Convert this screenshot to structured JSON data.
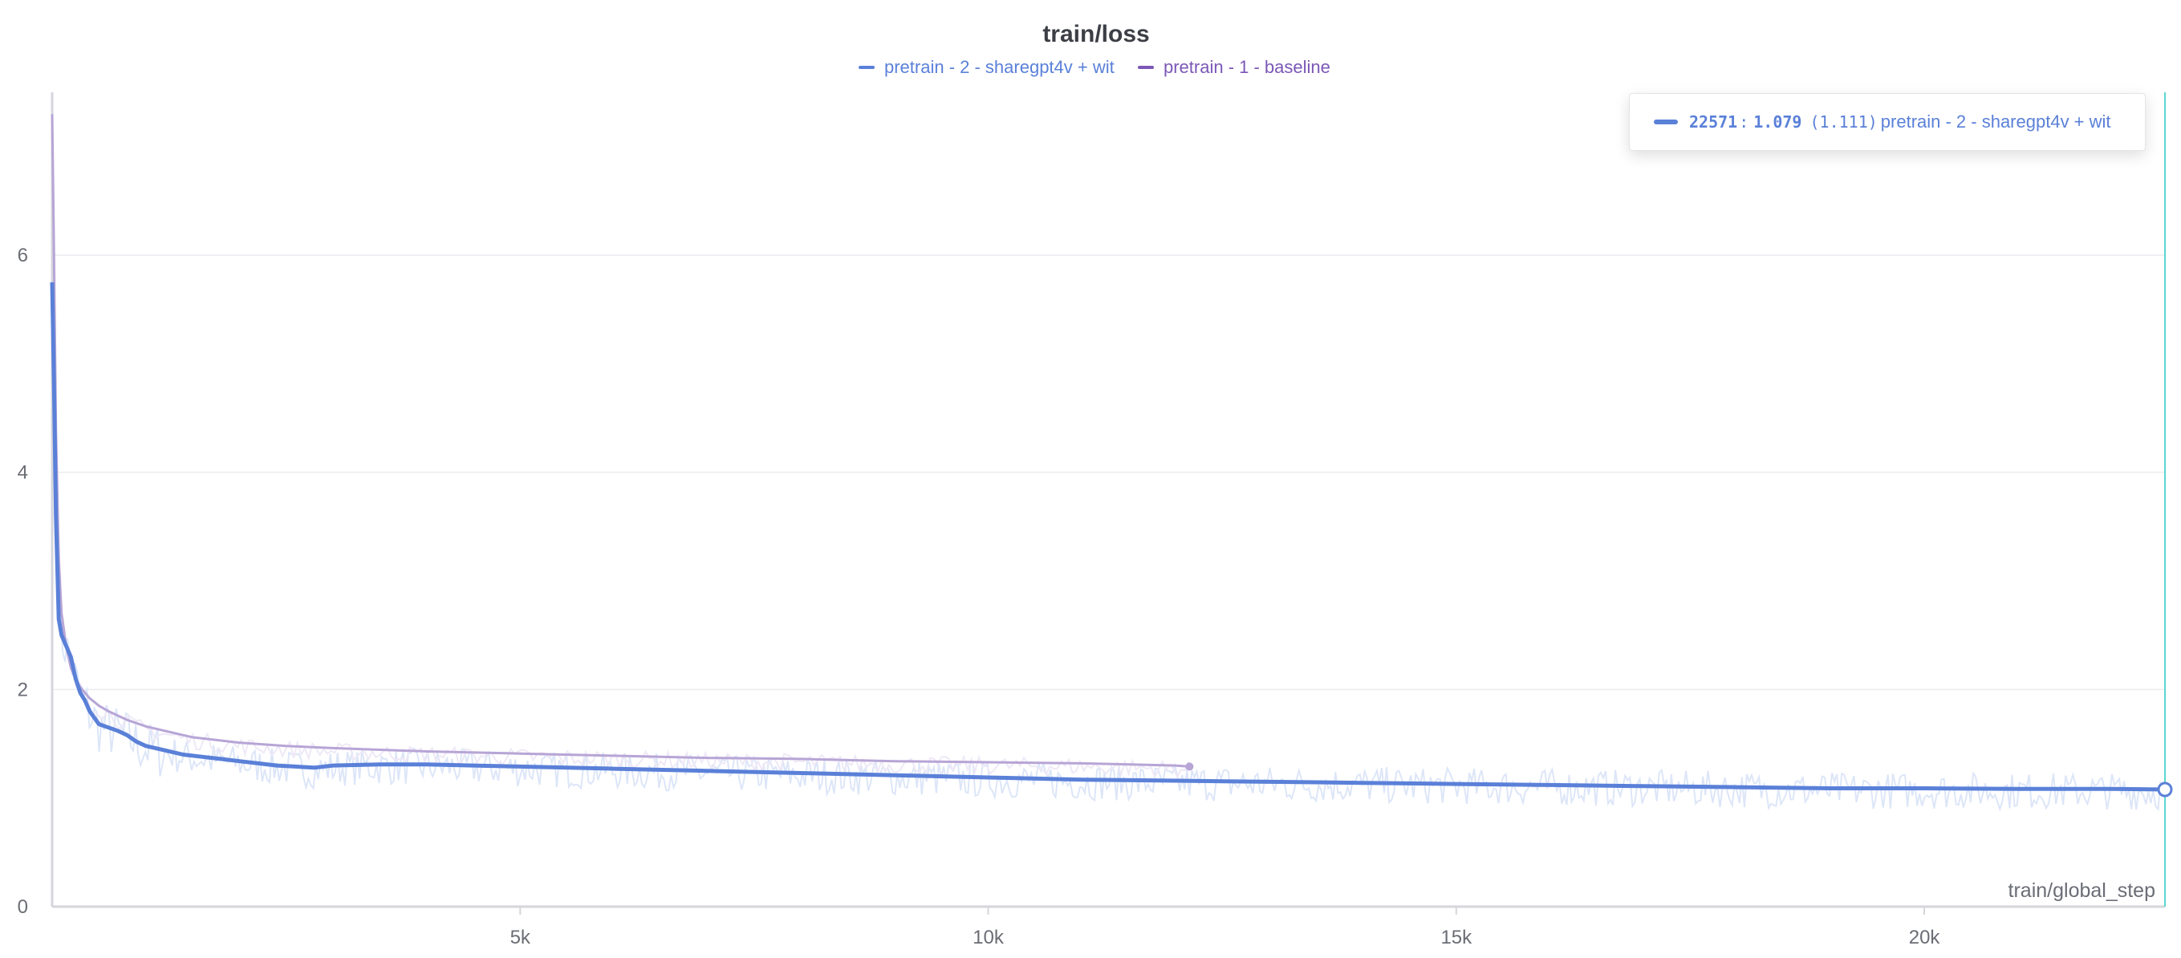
{
  "colors": {
    "series_primary": "#5a80d8",
    "series_primary_raw": "#dde6f8",
    "series_secondary": "#b7a5d6",
    "series_secondary_legend": "#7b57b6",
    "cursor_line": "#5cd6d0",
    "grid": "#ececf0",
    "axis": "#d5d6dc"
  },
  "tooltip": {
    "step": "22571",
    "sep": ":",
    "value": "1.079",
    "smoothed": "(1.111)",
    "series_name": "pretrain - 2 - sharegpt4v + wit"
  },
  "chart_data": {
    "type": "line",
    "title": "train/loss",
    "xlabel": "train/global_step",
    "ylabel": "",
    "xlim": [
      0,
      22571
    ],
    "ylim": [
      0,
      7.5
    ],
    "x_ticks": [
      5000,
      10000,
      15000,
      20000
    ],
    "x_tick_labels": [
      "5k",
      "10k",
      "15k",
      "20k"
    ],
    "y_ticks": [
      0,
      2,
      4,
      6
    ],
    "y_tick_labels": [
      "0",
      "2",
      "4",
      "6"
    ],
    "grid": "horizontal",
    "legend_position": "top-center",
    "hover_step": 22571,
    "series": [
      {
        "name": "pretrain - 2 - sharegpt4v + wit",
        "x": [
          0,
          20,
          40,
          70,
          100,
          150,
          200,
          250,
          300,
          350,
          400,
          500,
          600,
          700,
          800,
          900,
          1000,
          1200,
          1400,
          1600,
          1800,
          2000,
          2200,
          2400,
          2600,
          2800,
          3000,
          3500,
          4000,
          4500,
          5000,
          6000,
          7000,
          8000,
          9000,
          10000,
          11000,
          12000,
          13000,
          14000,
          15000,
          16000,
          17000,
          18000,
          19000,
          20000,
          21000,
          22000,
          22571
        ],
        "y": [
          5.75,
          4.8,
          3.6,
          2.65,
          2.5,
          2.4,
          2.3,
          2.1,
          1.97,
          1.9,
          1.8,
          1.68,
          1.65,
          1.62,
          1.58,
          1.52,
          1.48,
          1.44,
          1.4,
          1.38,
          1.36,
          1.34,
          1.32,
          1.3,
          1.29,
          1.28,
          1.3,
          1.31,
          1.31,
          1.3,
          1.29,
          1.27,
          1.25,
          1.23,
          1.21,
          1.19,
          1.17,
          1.16,
          1.15,
          1.14,
          1.13,
          1.12,
          1.11,
          1.1,
          1.09,
          1.09,
          1.085,
          1.085,
          1.079
        ]
      },
      {
        "name": "pretrain - 1 - baseline",
        "x": [
          0,
          20,
          40,
          70,
          100,
          150,
          200,
          250,
          300,
          400,
          500,
          600,
          800,
          1000,
          1200,
          1500,
          2000,
          2500,
          3000,
          4000,
          5000,
          6000,
          7000,
          8000,
          9000,
          10000,
          11000,
          12000,
          12150
        ],
        "y": [
          7.3,
          6.0,
          4.4,
          3.2,
          2.7,
          2.4,
          2.2,
          2.1,
          2.02,
          1.92,
          1.85,
          1.8,
          1.72,
          1.66,
          1.62,
          1.56,
          1.51,
          1.48,
          1.46,
          1.43,
          1.41,
          1.39,
          1.37,
          1.36,
          1.34,
          1.33,
          1.32,
          1.3,
          1.29
        ]
      }
    ]
  }
}
